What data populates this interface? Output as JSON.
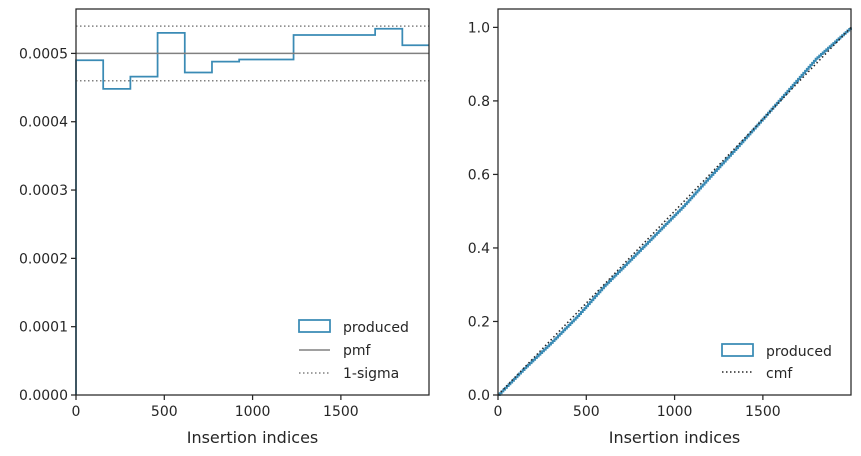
{
  "colors": {
    "produced": "#3a8bb5",
    "pmf": "#808080",
    "sigma": "#808080",
    "cmf": "#262626",
    "axis": "#262626"
  },
  "chart_data": [
    {
      "type": "step",
      "xlabel": "Insertion indices",
      "ylabel": "",
      "xlim": [
        0,
        1999
      ],
      "ylim": [
        0,
        0.000565
      ],
      "xticks": [
        0,
        500,
        1000,
        1500
      ],
      "xtick_labels": [
        "0",
        "500",
        "1000",
        "1500"
      ],
      "yticks": [
        0,
        0.0001,
        0.0002,
        0.0003,
        0.0004,
        0.0005
      ],
      "ytick_labels": [
        "0.0000",
        "0.0001",
        "0.0002",
        "0.0003",
        "0.0004",
        "0.0005"
      ],
      "legend_position": "lower-right",
      "legend": [
        "produced",
        "pmf",
        "1-sigma"
      ],
      "series": [
        {
          "name": "produced",
          "style": "step",
          "bin_edges": [
            0,
            154,
            308,
            462,
            616,
            770,
            924,
            1078,
            1232,
            1386,
            1540,
            1694,
            1848,
            1999
          ],
          "values": [
            0.00049,
            0.000448,
            0.000466,
            0.00053,
            0.000472,
            0.000488,
            0.000491,
            0.000491,
            0.000527,
            0.000527,
            0.000527,
            0.000536,
            0.000512
          ]
        },
        {
          "name": "pmf",
          "style": "hline",
          "value": 0.0005
        },
        {
          "name": "1-sigma",
          "style": "hline-dotted",
          "values": [
            0.00046,
            0.00054
          ]
        }
      ]
    },
    {
      "type": "line",
      "xlabel": "Insertion indices",
      "ylabel": "",
      "xlim": [
        0,
        1999
      ],
      "ylim": [
        0,
        1.05
      ],
      "xticks": [
        0,
        500,
        1000,
        1500
      ],
      "xtick_labels": [
        "0",
        "500",
        "1000",
        "1500"
      ],
      "yticks": [
        0,
        0.2,
        0.4,
        0.6,
        0.8,
        1.0
      ],
      "ytick_labels": [
        "0.0",
        "0.2",
        "0.4",
        "0.6",
        "0.8",
        "1.0"
      ],
      "legend_position": "lower-right",
      "legend": [
        "produced",
        "cmf"
      ],
      "series": [
        {
          "name": "produced",
          "style": "step-cumulative",
          "x": [
            0,
            150,
            300,
            450,
            600,
            750,
            900,
            1050,
            1200,
            1350,
            1500,
            1650,
            1800,
            1999
          ],
          "y": [
            0,
            0.073,
            0.142,
            0.215,
            0.296,
            0.368,
            0.441,
            0.514,
            0.594,
            0.672,
            0.752,
            0.833,
            0.915,
            1.0
          ]
        },
        {
          "name": "cmf",
          "style": "dotted-line",
          "x": [
            0,
            1999
          ],
          "y": [
            0,
            1.0
          ]
        }
      ]
    }
  ]
}
